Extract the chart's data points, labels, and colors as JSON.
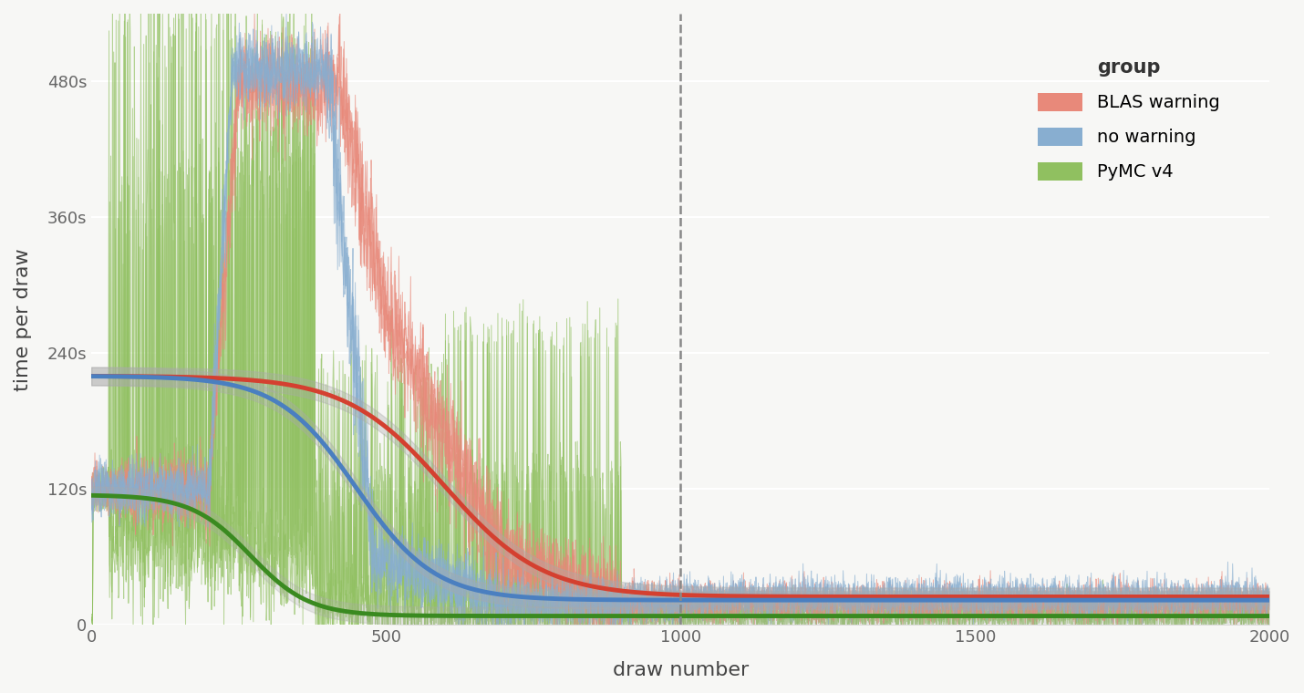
{
  "title": "",
  "xlabel": "draw number",
  "ylabel": "time per draw",
  "xlim": [
    0,
    2000
  ],
  "ylim": [
    0,
    540
  ],
  "yticks": [
    0,
    120,
    240,
    360,
    480
  ],
  "ytick_labels": [
    "0",
    "120s",
    "240s",
    "360s",
    "480s"
  ],
  "xticks": [
    0,
    500,
    1000,
    1500,
    2000
  ],
  "vline_x": 1000,
  "background_color": "#f7f7f5",
  "grid_color": "#ffffff",
  "legend_title": "group",
  "legend_entries": [
    "BLAS warning",
    "no warning",
    "PyMC v4"
  ],
  "colors": {
    "blas": "#e8897a",
    "no_warning": "#88aed0",
    "pymc4": "#90c060"
  },
  "smooth_colors": {
    "blas": "#d44030",
    "no_warning": "#4a7fc0",
    "pymc4": "#3a8a20"
  }
}
